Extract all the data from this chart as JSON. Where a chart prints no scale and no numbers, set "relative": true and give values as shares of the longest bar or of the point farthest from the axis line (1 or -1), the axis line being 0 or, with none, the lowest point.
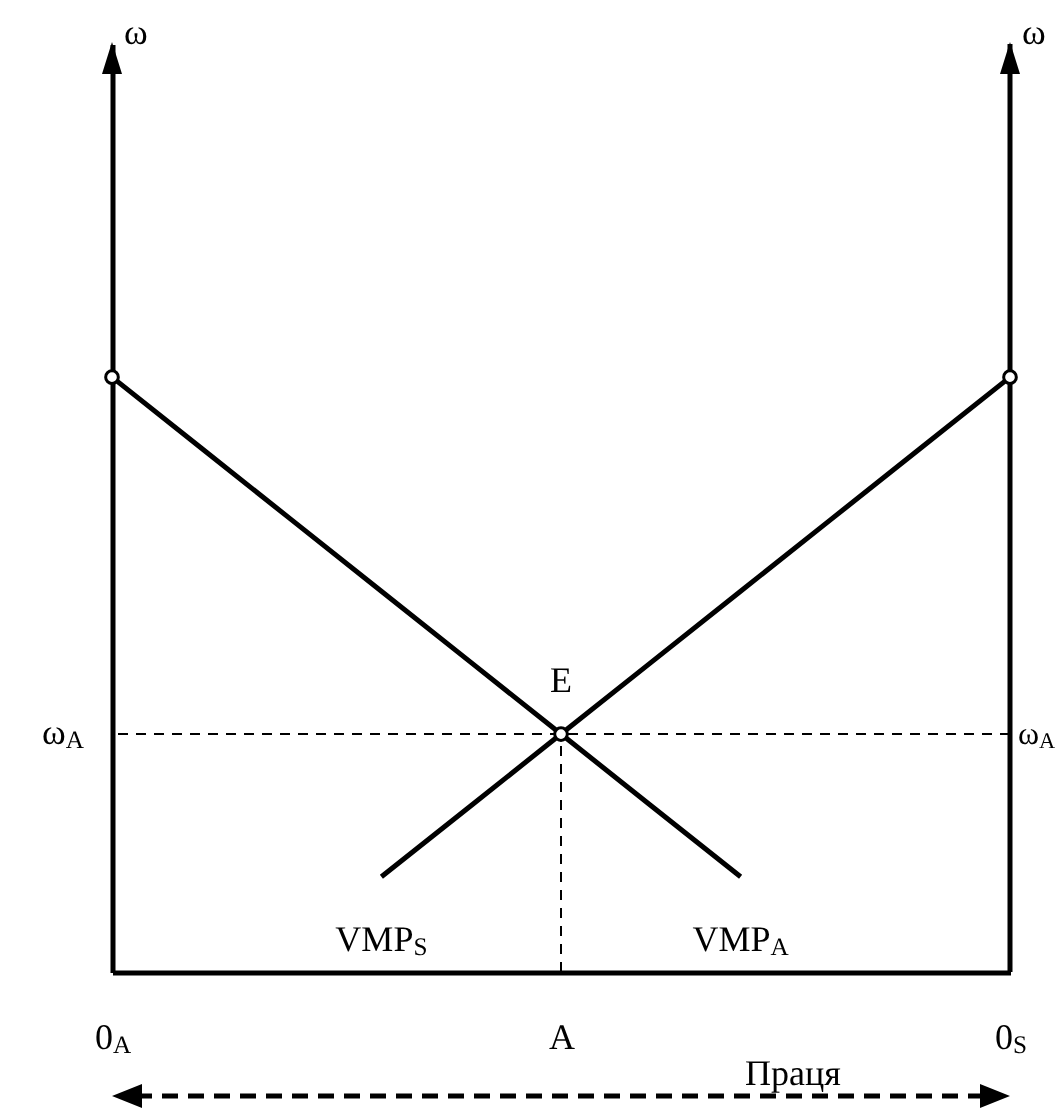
{
  "chart_data": {
    "type": "line",
    "relative": true,
    "xlabel": "Праця",
    "categories": [
      "0$_{A}$",
      null,
      null,
      null,
      null,
      "A",
      null,
      null,
      null,
      null,
      "0$_{S}$"
    ],
    "series": [
      {
        "name": "VMP$_{A}$",
        "color": "#000000",
        "values": [
          1,
          0.88,
          0.76,
          0.64,
          0.52,
          0.4,
          0.28,
          0.16,
          null,
          null,
          null
        ]
      },
      {
        "name": "VMP$_{S}$",
        "color": "#000000",
        "values": [
          null,
          null,
          null,
          0.16,
          0.28,
          0.4,
          0.52,
          0.64,
          0.76,
          0.88,
          1
        ]
      }
    ],
    "ref_lines": [
      {
        "axis": "y",
        "value": 0.4,
        "label": "ω$_{A}$",
        "line_style": "dashed"
      },
      {
        "axis": "x",
        "value": "A",
        "line_style": "dashed"
      }
    ],
    "annotations": [
      "ω",
      "ω",
      {
        "text": "E",
        "x": "A",
        "y": 0.4
      }
    ]
  }
}
